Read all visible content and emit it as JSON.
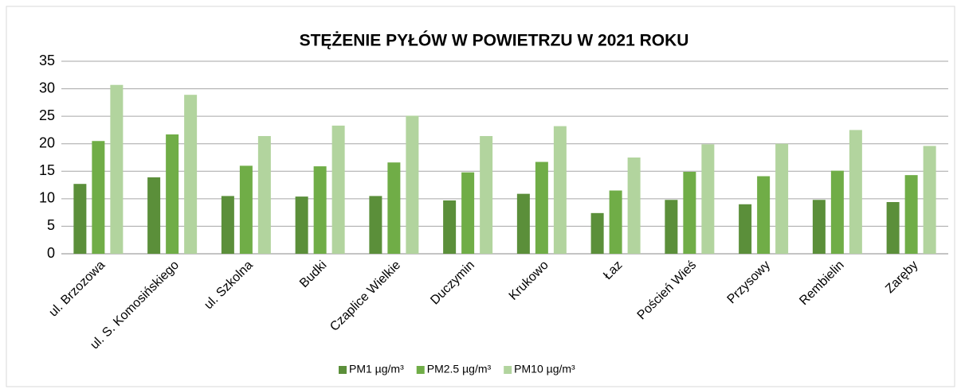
{
  "chart_data": {
    "type": "bar",
    "title": "STĘŻENIE PYŁÓW W POWIETRZU W 2021 ROKU",
    "categories": [
      "ul. Brzozowa",
      "ul. S. Komosińskiego",
      "ul. Szkolna",
      "Budki",
      "Czaplice Wielkie",
      "Duczymin",
      "Krukowo",
      "Łaz",
      "Poścień Wieś",
      "Przysowy",
      "Rembielin",
      "Zaręby"
    ],
    "series": [
      {
        "name": "PM1 µg/m³",
        "color": "#5b8f3a",
        "values": [
          12.7,
          13.9,
          10.5,
          10.4,
          10.5,
          9.7,
          10.9,
          7.4,
          9.8,
          9.0,
          9.8,
          9.4
        ]
      },
      {
        "name": "PM2.5 µg/m³",
        "color": "#70ad47",
        "values": [
          20.5,
          21.7,
          16.0,
          15.9,
          16.6,
          14.8,
          16.7,
          11.5,
          14.9,
          14.1,
          15.1,
          14.3
        ]
      },
      {
        "name": "PM10 µg/m³",
        "color": "#b2d49e",
        "values": [
          30.7,
          28.9,
          21.4,
          23.3,
          25.1,
          21.4,
          23.2,
          17.5,
          19.9,
          20.0,
          22.5,
          19.6
        ]
      }
    ],
    "ylim": [
      0,
      35
    ],
    "yticks": [
      0,
      5,
      10,
      15,
      20,
      25,
      30,
      35
    ],
    "grid": true,
    "legend": "bottom"
  }
}
